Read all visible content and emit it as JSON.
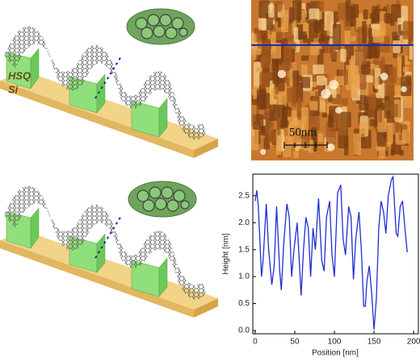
{
  "illustration": {
    "hsq_label": "HSQ",
    "si_label": "Si"
  },
  "afm_image": {
    "scale_bar": "50nm"
  },
  "chart_data": {
    "type": "line",
    "x_label": "Position [nm]",
    "y_label": "Height [nm]",
    "x": [
      0,
      2,
      4,
      8,
      10,
      14,
      17,
      21,
      24,
      27,
      31,
      33,
      36,
      40,
      43,
      46,
      49,
      53,
      56,
      58,
      61,
      64,
      67,
      70,
      73,
      76,
      80,
      84,
      87,
      90,
      94,
      97,
      100,
      104,
      108,
      111,
      114,
      118,
      121,
      124,
      127,
      131,
      134,
      137,
      139,
      141,
      144,
      147,
      150,
      153,
      156,
      159,
      162,
      165,
      168,
      172,
      174,
      176,
      178,
      180,
      183,
      186,
      189,
      192
    ],
    "series": [
      {
        "color": "#1f2fd0",
        "values": [
          2.4,
          2.6,
          2.3,
          1.0,
          1.3,
          2.35,
          1.5,
          0.85,
          1.2,
          2.3,
          1.1,
          0.75,
          1.6,
          2.35,
          2.1,
          1.0,
          1.5,
          2.0,
          1.2,
          0.65,
          1.5,
          2.1,
          1.9,
          1.0,
          1.9,
          1.5,
          2.45,
          1.3,
          1.1,
          2.1,
          2.4,
          1.4,
          1.0,
          2.55,
          2.7,
          1.7,
          1.4,
          2.3,
          2.1,
          0.95,
          1.7,
          2.2,
          1.5,
          0.45,
          0.45,
          0.9,
          1.2,
          0.7,
          0.02,
          0.6,
          1.9,
          2.4,
          2.2,
          1.8,
          2.5,
          2.8,
          2.85,
          2.3,
          1.8,
          1.75,
          2.3,
          2.4,
          1.9,
          1.45
        ]
      }
    ],
    "xlim": [
      -3,
      206
    ],
    "ylim": [
      -0.06,
      2.9
    ],
    "xticks": [
      0,
      50,
      100,
      150,
      200
    ],
    "yticks": [
      {
        "value": 0,
        "label": "0.0"
      },
      0.5,
      {
        "value": 1,
        "label": "1.0"
      },
      1.5,
      {
        "value": 2,
        "label": "2.0"
      },
      2.5
    ]
  }
}
